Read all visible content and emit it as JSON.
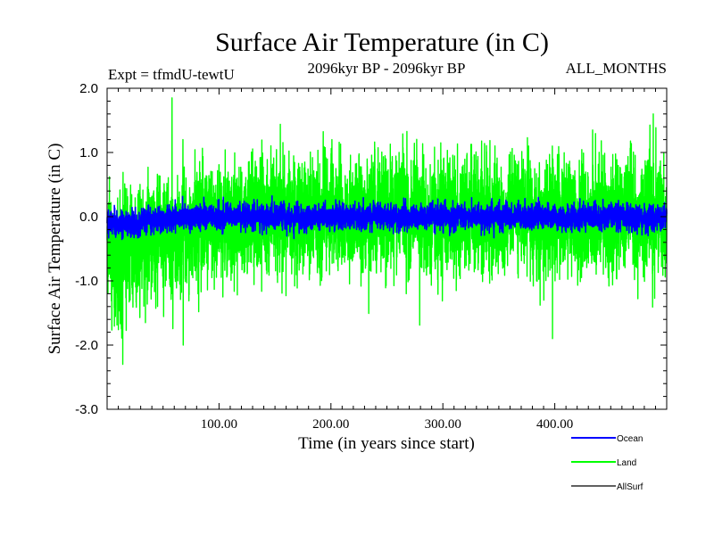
{
  "chart_data": {
    "type": "line",
    "title": "Surface Air Temperature (in C)",
    "subtitle_left": "Expt = tfmdU-tewtU",
    "subtitle_center": "2096kyr BP - 2096kyr BP",
    "subtitle_right": "ALL_MONTHS",
    "xlabel": "Time (in years since start)",
    "ylabel": "Surface Air Temperature (in C)",
    "xlim": [
      0,
      500
    ],
    "ylim": [
      -3.0,
      2.0
    ],
    "x_ticks": [
      100,
      200,
      300,
      400
    ],
    "x_tick_labels": [
      "100.00",
      "200.00",
      "300.00",
      "400.00"
    ],
    "y_ticks": [
      2.0,
      1.0,
      0.0,
      -1.0,
      -2.0,
      -3.0
    ],
    "y_tick_labels": [
      "2.0",
      "1.0",
      "0.0",
      "-1.0",
      "-2.0",
      "-3.0"
    ],
    "grid": false,
    "legend_position": "bottom-right",
    "series": [
      {
        "name": "Land",
        "color": "#00ff00",
        "x_start": 0,
        "x_end": 500,
        "n_points": 6000,
        "mean_curve_x": [
          0,
          10,
          20,
          30,
          45,
          60,
          80,
          100,
          150,
          200,
          300,
          400,
          500
        ],
        "mean_curve_y": [
          -0.5,
          -0.6,
          -0.55,
          -0.4,
          -0.3,
          -0.2,
          -0.1,
          -0.05,
          0.0,
          0.02,
          0.0,
          0.0,
          0.0
        ],
        "noise_amplitude": 0.55,
        "notable_points": [
          {
            "x": 14,
            "y": -2.3
          },
          {
            "x": 58,
            "y": 1.85
          },
          {
            "x": 68,
            "y": -2.0
          },
          {
            "x": 398,
            "y": -1.9
          },
          {
            "x": 488,
            "y": 1.6
          }
        ]
      },
      {
        "name": "Ocean",
        "color": "#0000ff",
        "x_start": 0,
        "x_end": 500,
        "n_points": 6000,
        "mean_curve_x": [
          0,
          10,
          20,
          30,
          45,
          60,
          80,
          100,
          150,
          200,
          300,
          400,
          500
        ],
        "mean_curve_y": [
          -0.05,
          -0.15,
          -0.12,
          -0.08,
          -0.05,
          -0.02,
          0.0,
          0.0,
          0.0,
          0.0,
          0.0,
          0.0,
          0.0
        ],
        "noise_amplitude": 0.12,
        "notable_points": []
      },
      {
        "name": "AllSurf",
        "color": "#000000",
        "x_start": 0,
        "x_end": 500,
        "n_points": 0,
        "mean_curve_x": [],
        "mean_curve_y": [],
        "noise_amplitude": 0,
        "notable_points": []
      }
    ]
  },
  "legend": {
    "items": [
      {
        "label": "Ocean",
        "color": "#0000ff"
      },
      {
        "label": "Land",
        "color": "#00ff00"
      },
      {
        "label": "AllSurf",
        "color": "#000000"
      }
    ]
  }
}
